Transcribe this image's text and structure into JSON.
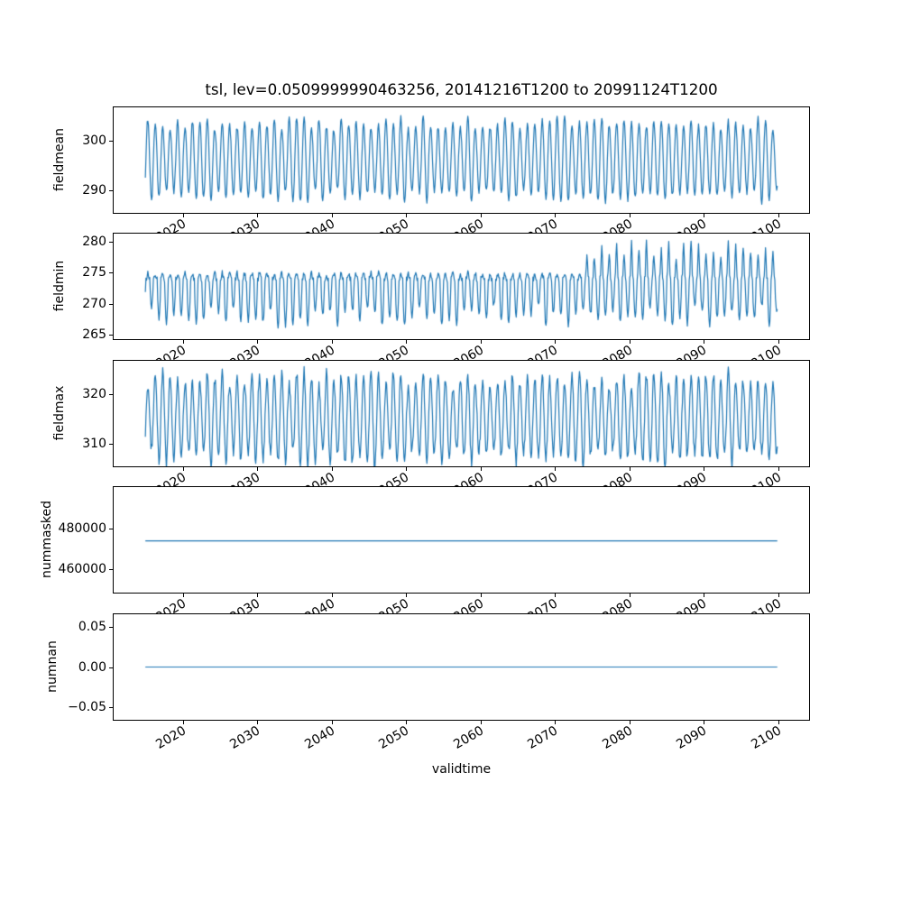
{
  "chart_data": {
    "type": "line",
    "title": "tsl, lev=0.0509999990463256, 20141216T1200 to 20991124T1200",
    "xlabel": "validtime",
    "line_color": "#1f77b4",
    "x_range": [
      2014.96,
      2099.9
    ],
    "xlim": [
      2010.7,
      2104.15
    ],
    "xtick_values": [
      2020,
      2030,
      2040,
      2050,
      2060,
      2070,
      2080,
      2090,
      2100
    ],
    "xtick_labels": [
      "2020",
      "2030",
      "2040",
      "2050",
      "2060",
      "2070",
      "2080",
      "2090",
      "2100"
    ],
    "samples_per_year": 12,
    "grid": false,
    "legend": "none",
    "subplots": [
      {
        "name": "fieldmean",
        "ylabel": "fieldmean",
        "ylim": [
          285.3,
          306.9
        ],
        "ytick_values": [
          290,
          300
        ],
        "ytick_labels": [
          "290",
          "300"
        ],
        "series": {
          "pattern": "seasonal",
          "mean": 296.2,
          "amplitude": 7.4,
          "amplitude_jitter": 1.4,
          "noise": 0.55
        },
        "envelope": [
          287.0,
          305.6
        ],
        "description": "Dense annual oscillation of the field mean between about 287 and 305.5 for 2015-2100, roughly stationary"
      },
      {
        "name": "fieldmin",
        "ylabel": "fieldmin",
        "ylim": [
          264.3,
          281.3
        ],
        "ytick_values": [
          265,
          270,
          275,
          280
        ],
        "ytick_labels": [
          "265",
          "270",
          "275",
          "280"
        ],
        "series": {
          "pattern": "seasonal_min",
          "top": 274.0,
          "up_amp": 0.9,
          "down_amp": 6.0,
          "down_jitter": 1.8,
          "anomaly_start_year": 2074,
          "anomaly_max_extra": 5.5,
          "noise": 0.45
        },
        "envelope": [
          265.0,
          280.5
        ],
        "description": "Field minimum: plateau near 274-275 with sharp winter dips to ~265-270; from about 2074 onward summer peaks rise to ~278-280.5"
      },
      {
        "name": "fieldmax",
        "ylabel": "fieldmax",
        "ylim": [
          305.3,
          326.9
        ],
        "ytick_values": [
          310,
          320
        ],
        "ytick_labels": [
          "310",
          "320"
        ],
        "series": {
          "pattern": "seasonal",
          "mean": 315.2,
          "amplitude": 8.2,
          "amplitude_jitter": 1.9,
          "noise": 1.1
        },
        "envelope": [
          306.0,
          326.5
        ],
        "description": "Dense annual oscillation of the field maximum between about 306 and 326.5 for 2015-2100"
      },
      {
        "name": "nummasked",
        "ylabel": "nummasked",
        "ylim": [
          448000,
          501000
        ],
        "ytick_values": [
          460000,
          480000
        ],
        "ytick_labels": [
          "460000",
          "480000"
        ],
        "series": {
          "pattern": "constant",
          "value": 474000
        },
        "envelope": [
          474000,
          474000
        ],
        "description": "Number of masked points: constant horizontal line at about 474000"
      },
      {
        "name": "numnan",
        "ylabel": "numnan",
        "ylim": [
          -0.066,
          0.066
        ],
        "ytick_values": [
          -0.05,
          0,
          0.05
        ],
        "ytick_labels": [
          "−0.05",
          "0.00",
          "0.05"
        ],
        "series": {
          "pattern": "constant",
          "value": 0
        },
        "envelope": [
          0,
          0
        ],
        "description": "Number of NaN points: constant horizontal line at 0.00"
      }
    ]
  }
}
